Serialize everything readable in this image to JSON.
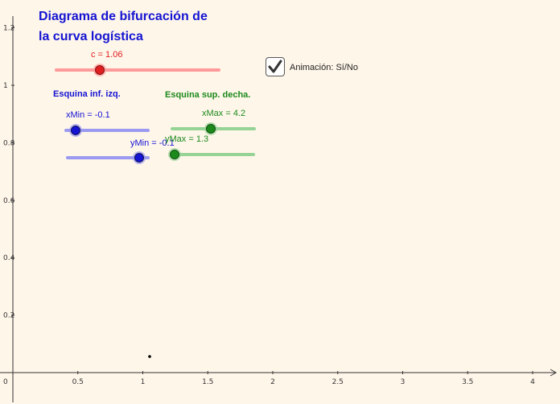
{
  "title": {
    "line1": "Diagrama de bifurcación de",
    "line2": "la curva logística"
  },
  "slider_c": {
    "label": "c = 1.06",
    "value": 1.06,
    "color": "#e02020"
  },
  "animation": {
    "label": "Animación: Sí/No",
    "checked": true
  },
  "lower_left": {
    "heading": "Esquina inf. izq.",
    "color": "#1414d2",
    "xmin": {
      "label": "xMin = -0.1",
      "value": -0.1
    },
    "ymin": {
      "label": "yMin = -0.1",
      "value": -0.1
    }
  },
  "upper_right": {
    "heading": "Esquina sup. decha.",
    "color": "#1b8a1b",
    "xmax": {
      "label": "xMax = 4.2",
      "value": 4.2
    },
    "ymax": {
      "label": "yMax = 1.3",
      "value": 1.3
    }
  },
  "axes": {
    "x_ticks": [
      "0",
      "0.5",
      "1",
      "1.5",
      "2",
      "2.5",
      "3",
      "3.5",
      "4"
    ],
    "y_ticks": [
      "0.2",
      "0.4",
      "0.6",
      "0.8",
      "1",
      "1.2"
    ]
  }
}
